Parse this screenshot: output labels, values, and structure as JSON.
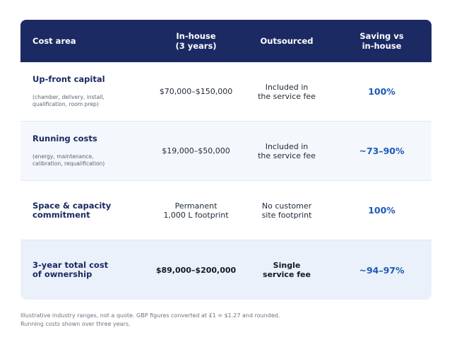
{
  "header": {
    "col1": "Cost area",
    "col2_line1": "In-house",
    "col2_line2": "(3 years)",
    "col3": "Outsourced",
    "col4_line1": "Saving vs",
    "col4_line2": "in-house"
  },
  "rows": [
    {
      "title_line1": "Up-front capital",
      "title_line2": "",
      "note_line1": "(chamber, delivery, install,",
      "note_line2": "qualification, room prep)",
      "inhouse_line1": "$70,000–$150,000",
      "inhouse_line2": "",
      "outsourced_line1": "Included in",
      "outsourced_line2": "the service fee",
      "saving": "100%"
    },
    {
      "title_line1": "Running costs",
      "title_line2": "",
      "note_line1": "(energy, maintenance,",
      "note_line2": "calibration, requalification)",
      "inhouse_line1": "$19,000–$50,000",
      "inhouse_line2": "",
      "outsourced_line1": "Included in",
      "outsourced_line2": "the service fee",
      "saving": "~73–90%"
    },
    {
      "title_line1": "Space & capacity",
      "title_line2": "commitment",
      "note_line1": "",
      "note_line2": "",
      "inhouse_line1": "Permanent",
      "inhouse_line2": "1,000 L footprint",
      "outsourced_line1": "No customer",
      "outsourced_line2": "site footprint",
      "saving": "100%"
    },
    {
      "title_line1": "3-year total cost",
      "title_line2": "of ownership",
      "note_line1": "",
      "note_line2": "",
      "inhouse_line1": "$89,000–$200,000",
      "inhouse_line2": "",
      "outsourced_line1": "Single",
      "outsourced_line2": "service fee",
      "saving": "~94–97%"
    }
  ],
  "footnote": {
    "line1": "Illustrative industry ranges, not a quote. GBP figures converted at £1 ≈ $1.27 and rounded.",
    "line2": "Running costs shown over three years."
  },
  "colors": {
    "header_bg": "#1b2a63",
    "saving_text": "#1e5ab8",
    "alt_row_bg": "#f4f7fc",
    "total_row_bg": "#ebf1fa"
  }
}
